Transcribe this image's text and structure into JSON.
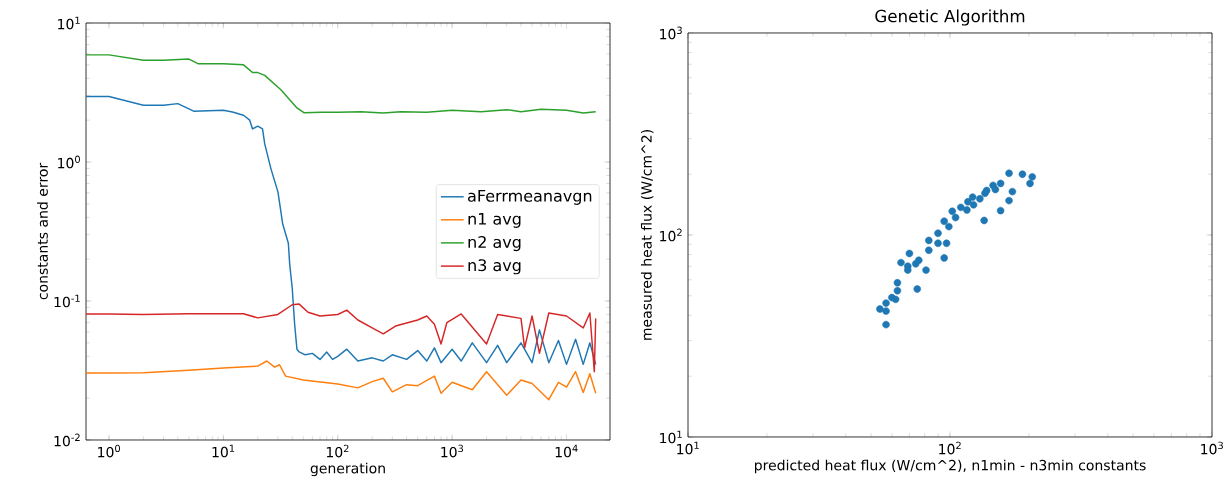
{
  "chart_data": [
    {
      "type": "line",
      "xlabel": "generation",
      "ylabel": "constants and error",
      "log": "xy",
      "legend": "right",
      "marker": "none",
      "xlim": [
        0.63,
        24000
      ],
      "ylim": [
        0.01,
        10
      ],
      "xticks": [
        {
          "value": 1,
          "label": "10$^{0}$"
        },
        {
          "value": 10,
          "label": "10$^{1}$"
        },
        {
          "value": 100,
          "label": "10$^{2}$"
        },
        {
          "value": 1000,
          "label": "10$^{3}$"
        },
        {
          "value": 10000,
          "label": "10$^{4}$"
        }
      ],
      "yticks": [
        {
          "value": 0.01,
          "label": "10$^{-2}$"
        },
        {
          "value": 0.1,
          "label": "10$^{-1}$"
        },
        {
          "value": 1,
          "label": "10$^{0}$"
        },
        {
          "value": 10,
          "label": "10$^{1}$"
        }
      ],
      "series": [
        {
          "name": "aFerrmeanavgn",
          "color": "#1f77b4",
          "x": [
            0.63,
            1,
            2,
            3,
            4,
            5.5,
            10,
            12,
            15,
            17,
            18,
            20,
            22,
            23,
            26,
            30,
            33,
            37,
            38,
            40,
            42,
            44,
            46,
            52,
            60,
            70,
            80,
            90,
            100,
            120,
            150,
            200,
            250,
            300,
            400,
            500,
            600,
            700,
            800,
            1000,
            1200,
            1500,
            2000,
            2500,
            3000,
            4000,
            5000,
            5800,
            7000,
            8500,
            10000,
            12000,
            14000,
            16000,
            18000
          ],
          "values": [
            2.96,
            2.96,
            2.56,
            2.56,
            2.63,
            2.32,
            2.36,
            2.29,
            2.17,
            2.0,
            1.73,
            1.81,
            1.73,
            1.35,
            0.9,
            0.61,
            0.36,
            0.26,
            0.185,
            0.124,
            0.068,
            0.045,
            0.043,
            0.041,
            0.042,
            0.038,
            0.043,
            0.038,
            0.04,
            0.045,
            0.037,
            0.039,
            0.037,
            0.041,
            0.038,
            0.044,
            0.037,
            0.046,
            0.036,
            0.045,
            0.037,
            0.05,
            0.036,
            0.048,
            0.036,
            0.05,
            0.036,
            0.062,
            0.036,
            0.052,
            0.035,
            0.053,
            0.035,
            0.05,
            0.035
          ]
        },
        {
          "name": "n1 avg",
          "color": "#ff7f0e",
          "x": [
            0.63,
            1,
            2,
            5,
            10,
            20,
            24,
            28,
            31,
            35,
            50,
            100,
            150,
            200,
            250,
            300,
            400,
            500,
            700,
            800,
            1000,
            1500,
            2000,
            3000,
            4000,
            5000,
            7000,
            8500,
            10000,
            12000,
            14000,
            16000,
            18000
          ],
          "values": [
            0.0303,
            0.0303,
            0.0305,
            0.0318,
            0.033,
            0.034,
            0.037,
            0.0334,
            0.0348,
            0.0288,
            0.027,
            0.0253,
            0.0237,
            0.0263,
            0.0278,
            0.0222,
            0.025,
            0.0246,
            0.0288,
            0.0217,
            0.026,
            0.023,
            0.031,
            0.021,
            0.027,
            0.0255,
            0.0195,
            0.026,
            0.024,
            0.031,
            0.022,
            0.03,
            0.0217
          ]
        },
        {
          "name": "n2 avg",
          "color": "#2ca02c",
          "x": [
            0.63,
            1,
            2,
            3,
            5,
            6,
            10,
            15,
            18,
            20,
            23,
            32,
            44,
            51,
            71,
            100,
            160,
            250,
            356,
            600,
            1000,
            1790,
            3000,
            4000,
            6000,
            10000,
            14000,
            18000
          ],
          "values": [
            5.9,
            5.9,
            5.4,
            5.4,
            5.5,
            5.1,
            5.1,
            5.0,
            4.4,
            4.4,
            4.2,
            3.3,
            2.45,
            2.26,
            2.28,
            2.28,
            2.3,
            2.25,
            2.3,
            2.28,
            2.36,
            2.3,
            2.38,
            2.3,
            2.4,
            2.36,
            2.25,
            2.3
          ]
        },
        {
          "name": "n3 avg",
          "color": "#d62728",
          "x": [
            0.63,
            1,
            2,
            5,
            10,
            15,
            20,
            30,
            40,
            46,
            55,
            70,
            100,
            120,
            150,
            200,
            250,
            320,
            500,
            600,
            700,
            800,
            900,
            1200,
            2000,
            2500,
            4000,
            4300,
            5000,
            5800,
            7000,
            10000,
            14000,
            16000,
            17500,
            18000
          ],
          "values": [
            0.0807,
            0.0807,
            0.08,
            0.081,
            0.081,
            0.081,
            0.0756,
            0.08,
            0.094,
            0.095,
            0.083,
            0.078,
            0.08,
            0.086,
            0.073,
            0.064,
            0.058,
            0.066,
            0.073,
            0.078,
            0.068,
            0.049,
            0.07,
            0.0807,
            0.049,
            0.08,
            0.075,
            0.046,
            0.078,
            0.042,
            0.082,
            0.078,
            0.064,
            0.082,
            0.031,
            0.075
          ]
        }
      ]
    },
    {
      "type": "scatter",
      "title": "Genetic Algorithm",
      "xlabel": "predicted heat flux (W/cm^2), n1min - n3min constants",
      "ylabel": "measured heat flux (W/cm^2)",
      "log": "xy",
      "marker": "circle",
      "xlim": [
        10,
        1000
      ],
      "ylim": [
        10,
        1000
      ],
      "xticks": [
        {
          "value": 10,
          "label": "10$^{1}$"
        },
        {
          "value": 100,
          "label": "10$^{2}$"
        },
        {
          "value": 1000,
          "label": "10$^{3}$"
        }
      ],
      "yticks": [
        {
          "value": 10,
          "label": "10$^{1}$"
        },
        {
          "value": 100,
          "label": "10$^{2}$"
        },
        {
          "value": 1000,
          "label": "10$^{3}$"
        }
      ],
      "series": [
        {
          "color": "#1f77b4",
          "x": [
            54,
            57,
            57,
            57,
            60,
            62,
            63,
            63,
            75,
            65,
            69,
            69,
            70,
            74,
            76,
            81,
            83,
            83,
            90,
            90,
            97,
            95,
            95,
            99,
            102,
            105,
            110,
            116,
            117,
            122,
            123,
            130,
            135,
            136,
            138,
            146,
            149,
            156,
            156,
            168,
            173,
            168,
            189,
            206,
            202
          ],
          "values": [
            43,
            42,
            36,
            46,
            49,
            48,
            53,
            58,
            54,
            73,
            70,
            67,
            81,
            72,
            75,
            67,
            84,
            94,
            91,
            102,
            91,
            77,
            117,
            110,
            131,
            122,
            137,
            133,
            146,
            154,
            141,
            151,
            118,
            161,
            166,
            176,
            168,
            180,
            132,
            148,
            164,
            202,
            200,
            194,
            180
          ]
        }
      ]
    }
  ]
}
